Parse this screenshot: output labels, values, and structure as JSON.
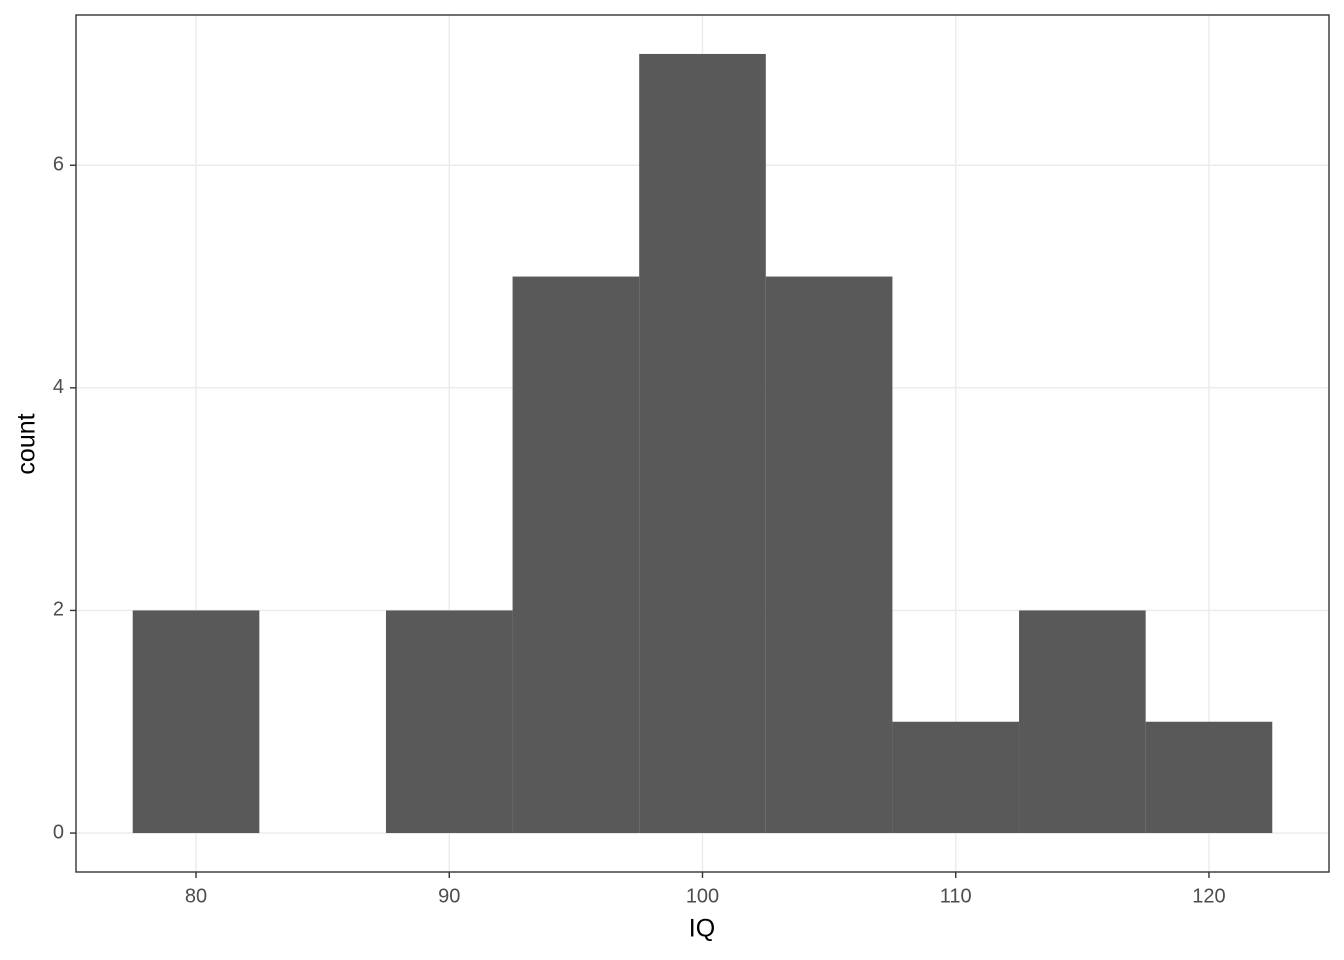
{
  "chart_data": {
    "type": "histogram",
    "x_label": "IQ",
    "y_label": "count",
    "bins": [
      77.5,
      82.5,
      87.5,
      92.5,
      97.5,
      102.5,
      107.5,
      112.5,
      117.5,
      122.5
    ],
    "values": [
      2,
      0,
      2,
      5,
      7,
      5,
      1,
      2,
      1
    ],
    "color": "#595959",
    "xlim": [
      75.26,
      124.74
    ],
    "xticks": [
      80,
      90,
      100,
      110,
      120
    ],
    "ylim": [
      -0.35,
      7.35
    ],
    "yticks": [
      0,
      2,
      4,
      6
    ],
    "grid": true
  }
}
